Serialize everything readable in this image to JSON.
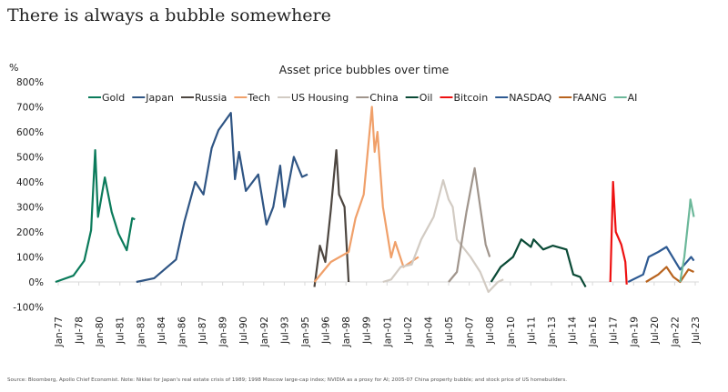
{
  "page_title": "There is always a bubble somewhere",
  "source_note": "Source: Bloomberg, Apollo Chief Economist. Note: Nikkei for Japan's real estate crisis of 1989; 1998 Moscow large-cap index; NVIDIA as a proxy for AI; 2005-07 China property bubble; and stock price of US homebuilders.",
  "chart_data": {
    "type": "line",
    "title": "Asset price bubbles over time",
    "ylabel": "%",
    "xlabel": "",
    "ylim": [
      -100,
      800
    ],
    "yticks": [
      -100,
      0,
      100,
      200,
      300,
      400,
      500,
      600,
      700,
      800
    ],
    "ytick_labels": [
      "-100%",
      "0%",
      "100%",
      "200%",
      "300%",
      "400%",
      "500%",
      "600%",
      "700%",
      "800%"
    ],
    "xlim": [
      1977.0,
      2023.5
    ],
    "xtick_labels": [
      "Jan-77",
      "Jul-78",
      "Jan-80",
      "Jul-81",
      "Jan-83",
      "Jul-84",
      "Jan-86",
      "Jul-87",
      "Jan-89",
      "Jul-90",
      "Jan-92",
      "Jul-93",
      "Jan-95",
      "Jul-96",
      "Jan-98",
      "Jul-99",
      "Jan-01",
      "Jul-02",
      "Jan-04",
      "Jul-05",
      "Jan-07",
      "Jul-08",
      "Jan-10",
      "Jul-11",
      "Jan-13",
      "Jul-14",
      "Jan-16",
      "Jul-17",
      "Jan-19",
      "Jul-20",
      "Jan-22",
      "Jul-23"
    ],
    "grid": false,
    "legend_position": "top",
    "series": [
      {
        "name": "Gold",
        "color": "#0b7b5b",
        "points": [
          [
            1976.8,
            0
          ],
          [
            1978.1,
            25
          ],
          [
            1978.9,
            85
          ],
          [
            1979.4,
            207
          ],
          [
            1979.7,
            527
          ],
          [
            1979.9,
            260
          ],
          [
            1980.4,
            418
          ],
          [
            1980.9,
            280
          ],
          [
            1981.4,
            193
          ],
          [
            1982.0,
            127
          ],
          [
            1982.4,
            255
          ],
          [
            1982.6,
            250
          ]
        ]
      },
      {
        "name": "Japan",
        "color": "#2f5584",
        "points": [
          [
            1982.7,
            0
          ],
          [
            1984.0,
            15
          ],
          [
            1985.6,
            90
          ],
          [
            1986.2,
            240
          ],
          [
            1987.0,
            400
          ],
          [
            1987.6,
            350
          ],
          [
            1988.2,
            535
          ],
          [
            1988.7,
            607
          ],
          [
            1989.6,
            676
          ],
          [
            1989.9,
            411
          ],
          [
            1990.2,
            520
          ],
          [
            1990.7,
            364
          ],
          [
            1991.6,
            430
          ],
          [
            1992.2,
            230
          ],
          [
            1992.7,
            300
          ],
          [
            1993.2,
            465
          ],
          [
            1993.5,
            300
          ],
          [
            1994.2,
            500
          ],
          [
            1994.8,
            420
          ],
          [
            1995.2,
            430
          ]
        ]
      },
      {
        "name": "Russia",
        "color": "#4d4640",
        "points": [
          [
            1995.7,
            -20
          ],
          [
            1996.1,
            145
          ],
          [
            1996.5,
            80
          ],
          [
            1996.9,
            290
          ],
          [
            1997.3,
            527
          ],
          [
            1997.5,
            350
          ],
          [
            1997.9,
            300
          ],
          [
            1998.2,
            0
          ]
        ]
      },
      {
        "name": "Tech",
        "color": "#f0a06a",
        "points": [
          [
            1995.7,
            0
          ],
          [
            1996.9,
            80
          ],
          [
            1998.2,
            120
          ],
          [
            1998.7,
            255
          ],
          [
            1999.3,
            350
          ],
          [
            1999.9,
            700
          ],
          [
            2000.1,
            520
          ],
          [
            2000.3,
            600
          ],
          [
            2000.7,
            300
          ],
          [
            2001.3,
            98
          ],
          [
            2001.6,
            160
          ],
          [
            2002.2,
            60
          ],
          [
            2003.3,
            100
          ]
        ]
      },
      {
        "name": "US Housing",
        "color": "#d2cbc3",
        "points": [
          [
            2000.7,
            0
          ],
          [
            2001.3,
            10
          ],
          [
            2002.0,
            60
          ],
          [
            2002.8,
            70
          ],
          [
            2003.5,
            170
          ],
          [
            2004.4,
            260
          ],
          [
            2005.1,
            407
          ],
          [
            2005.5,
            330
          ],
          [
            2005.8,
            300
          ],
          [
            2006.1,
            170
          ],
          [
            2007.1,
            100
          ],
          [
            2007.8,
            40
          ],
          [
            2008.4,
            -40
          ],
          [
            2009.1,
            0
          ],
          [
            2009.5,
            10
          ]
        ]
      },
      {
        "name": "China",
        "color": "#a0958c",
        "points": [
          [
            2005.5,
            0
          ],
          [
            2006.1,
            40
          ],
          [
            2006.8,
            280
          ],
          [
            2007.4,
            455
          ],
          [
            2007.8,
            300
          ],
          [
            2008.2,
            150
          ],
          [
            2008.5,
            100
          ]
        ]
      },
      {
        "name": "Oil",
        "color": "#0a4a36",
        "points": [
          [
            2008.6,
            0
          ],
          [
            2009.3,
            60
          ],
          [
            2010.2,
            100
          ],
          [
            2010.8,
            170
          ],
          [
            2011.5,
            140
          ],
          [
            2011.7,
            170
          ],
          [
            2012.4,
            130
          ],
          [
            2013.1,
            145
          ],
          [
            2014.1,
            130
          ],
          [
            2014.6,
            30
          ],
          [
            2015.1,
            20
          ],
          [
            2015.5,
            -20
          ]
        ]
      },
      {
        "name": "Bitcoin",
        "color": "#ee1111",
        "points": [
          [
            2017.3,
            0
          ],
          [
            2017.5,
            400
          ],
          [
            2017.7,
            200
          ],
          [
            2018.1,
            150
          ],
          [
            2018.4,
            80
          ],
          [
            2018.5,
            -10
          ]
        ]
      },
      {
        "name": "NASDAQ",
        "color": "#2e5a92",
        "points": [
          [
            2018.6,
            0
          ],
          [
            2019.7,
            30
          ],
          [
            2020.1,
            100
          ],
          [
            2020.8,
            120
          ],
          [
            2021.4,
            140
          ],
          [
            2022.4,
            50
          ],
          [
            2023.2,
            100
          ],
          [
            2023.4,
            85
          ]
        ]
      },
      {
        "name": "FAANG",
        "color": "#b8631e",
        "points": [
          [
            2019.9,
            0
          ],
          [
            2020.8,
            30
          ],
          [
            2021.4,
            60
          ],
          [
            2021.9,
            20
          ],
          [
            2022.4,
            0
          ],
          [
            2023.0,
            50
          ],
          [
            2023.4,
            40
          ]
        ]
      },
      {
        "name": "AI",
        "color": "#6cb89a",
        "points": [
          [
            2022.4,
            0
          ],
          [
            2022.7,
            100
          ],
          [
            2023.1,
            300
          ],
          [
            2023.15,
            330
          ],
          [
            2023.4,
            260
          ]
        ]
      }
    ]
  }
}
